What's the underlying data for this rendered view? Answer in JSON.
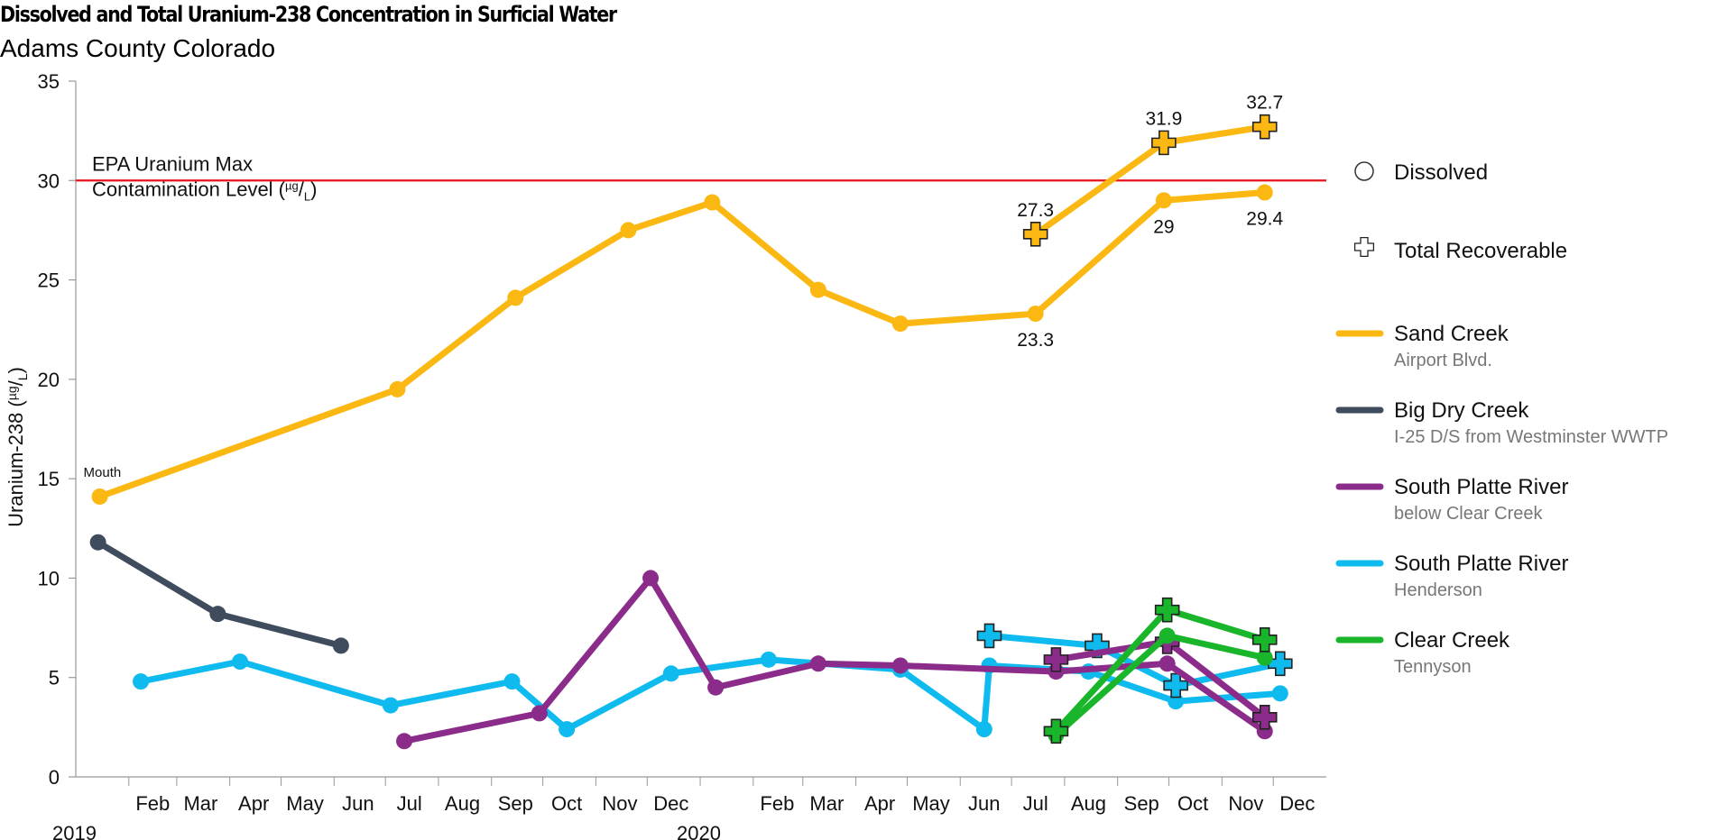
{
  "title": "Dissolved and Total Uranium-238 Concentration in Surficial Water",
  "subtitle": "Adams County Colorado",
  "chart_data": {
    "type": "line",
    "ylabel": "Uranium-238 (µg/L)",
    "ylim": [
      0,
      35
    ],
    "yticks": [
      0,
      5,
      10,
      15,
      20,
      25,
      30,
      35
    ],
    "xlim": [
      "2019-01-01",
      "2020-12-31"
    ],
    "month_ticks": [
      "Feb",
      "Mar",
      "Apr",
      "May",
      "Jun",
      "Jul",
      "Aug",
      "Sep",
      "Oct",
      "Nov",
      "Dec",
      "Feb",
      "Mar",
      "Apr",
      "May",
      "Jun",
      "Jul",
      "Aug",
      "Sep",
      "Oct",
      "Nov",
      "Dec"
    ],
    "year_labels": [
      "2019",
      "2020"
    ],
    "reference_line": {
      "value": 30,
      "label_line1": "EPA Uranium Max",
      "label_line2": "Contamination Level (µg/L)",
      "color": "#e8141b"
    },
    "annotation_mouth": "Mouth",
    "legend_markers": {
      "dissolved": "Dissolved",
      "total": "Total Recoverable"
    },
    "series": [
      {
        "name": "Sand Creek",
        "sub": "Airport Blvd.",
        "color": "#fbb813",
        "dissolved": [
          [
            "2019-01-15",
            14.1
          ],
          [
            "2019-07-08",
            19.5
          ],
          [
            "2019-09-15",
            24.1
          ],
          [
            "2019-11-20",
            27.5
          ],
          [
            "2020-01-08",
            28.9
          ],
          [
            "2020-03-10",
            24.5
          ],
          [
            "2020-04-27",
            22.8
          ],
          [
            "2020-07-15",
            23.3
          ],
          [
            "2020-09-28",
            29.0
          ],
          [
            "2020-11-26",
            29.4
          ]
        ],
        "total": [
          [
            "2020-07-15",
            27.3
          ],
          [
            "2020-09-28",
            31.9
          ],
          [
            "2020-11-26",
            32.7
          ]
        ],
        "dissolved_labels": [
          [
            "2020-07-15",
            "23.3",
            "below"
          ],
          [
            "2020-09-28",
            "29",
            "below"
          ],
          [
            "2020-11-26",
            "29.4",
            "below"
          ]
        ],
        "total_labels": [
          [
            "2020-07-15",
            "27.3",
            "above"
          ],
          [
            "2020-09-28",
            "31.9",
            "above"
          ],
          [
            "2020-11-26",
            "32.7",
            "above"
          ]
        ]
      },
      {
        "name": "Big Dry Creek",
        "sub": "I-25 D/S from Westminster WWTP",
        "color": "#3f4c5d",
        "dissolved": [
          [
            "2019-01-14",
            11.8
          ],
          [
            "2019-03-25",
            8.2
          ],
          [
            "2019-06-05",
            6.6
          ]
        ],
        "total": []
      },
      {
        "name": "South Platte River",
        "sub": "below Clear Creek",
        "color": "#8b2c8a",
        "dissolved": [
          [
            "2019-07-12",
            1.8
          ],
          [
            "2019-09-29",
            3.2
          ],
          [
            "2019-12-03",
            10.0
          ],
          [
            "2020-01-10",
            4.5
          ],
          [
            "2020-03-10",
            5.7
          ],
          [
            "2020-04-27",
            5.6
          ],
          [
            "2020-07-27",
            5.3
          ],
          [
            "2020-09-30",
            5.7
          ],
          [
            "2020-11-26",
            2.3
          ]
        ],
        "total": [
          [
            "2020-07-27",
            5.9
          ],
          [
            "2020-09-30",
            6.8
          ],
          [
            "2020-11-26",
            3.0
          ]
        ]
      },
      {
        "name": "South Platte River",
        "sub": "Henderson",
        "color": "#0fbbee",
        "dissolved": [
          [
            "2019-02-08",
            4.8
          ],
          [
            "2019-04-07",
            5.8
          ],
          [
            "2019-07-04",
            3.6
          ],
          [
            "2019-09-13",
            4.8
          ],
          [
            "2019-10-15",
            2.4
          ],
          [
            "2019-12-15",
            5.2
          ],
          [
            "2020-02-10",
            5.9
          ],
          [
            "2020-04-27",
            5.4
          ],
          [
            "2020-06-15",
            2.4
          ],
          [
            "2020-06-18",
            5.6
          ],
          [
            "2020-08-15",
            5.3
          ],
          [
            "2020-10-05",
            3.8
          ],
          [
            "2020-12-05",
            4.2
          ]
        ],
        "total": [
          [
            "2020-06-18",
            7.1
          ],
          [
            "2020-08-20",
            6.6
          ],
          [
            "2020-10-05",
            4.6
          ],
          [
            "2020-12-05",
            5.7
          ]
        ]
      },
      {
        "name": "Clear Creek",
        "sub": "Tennyson",
        "color": "#19b52b",
        "dissolved": [
          [
            "2020-07-27",
            2.1
          ],
          [
            "2020-09-30",
            7.1
          ],
          [
            "2020-11-26",
            6.0
          ]
        ],
        "total": [
          [
            "2020-07-27",
            2.3
          ],
          [
            "2020-09-30",
            8.4
          ],
          [
            "2020-11-26",
            6.9
          ]
        ]
      }
    ]
  }
}
